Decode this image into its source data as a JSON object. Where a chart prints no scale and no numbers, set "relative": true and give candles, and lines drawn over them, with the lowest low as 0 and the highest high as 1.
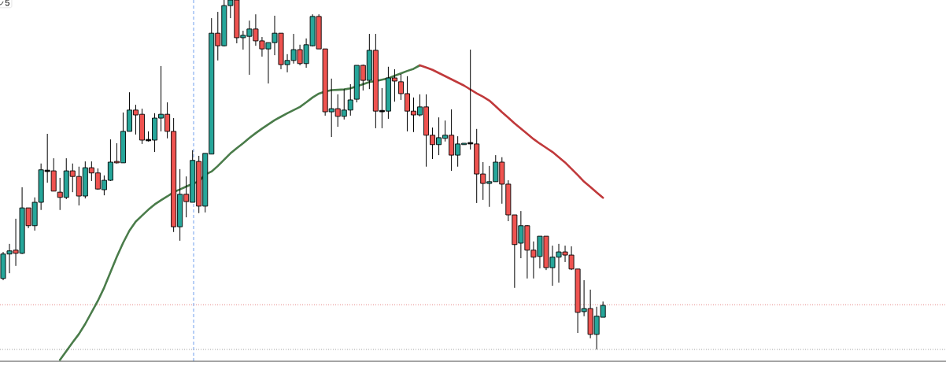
{
  "chart_data": {
    "type": "candlestick",
    "relative": true,
    "categories": [
      null,
      null,
      null,
      null,
      null,
      null,
      null,
      null,
      null,
      null,
      null,
      null,
      null,
      null,
      null,
      null,
      null,
      null,
      null,
      null,
      null,
      null,
      null,
      null,
      null,
      null,
      null,
      null,
      null,
      null,
      null,
      null,
      null,
      null,
      null,
      null,
      null,
      null,
      null,
      null,
      null,
      null,
      null,
      null,
      null,
      null,
      null,
      null,
      null,
      null,
      null,
      null,
      null,
      null,
      null,
      null,
      null,
      null,
      null,
      null,
      null,
      null,
      null,
      null,
      null,
      null,
      null,
      null,
      null,
      null,
      null,
      null,
      null,
      null,
      null,
      null,
      null,
      null,
      null,
      null,
      null,
      null,
      null,
      null,
      null,
      null,
      null,
      null,
      null,
      null,
      null,
      null,
      null,
      null,
      null,
      null
    ],
    "ohlc": [
      [
        0.203,
        0.279,
        0.198,
        0.273
      ],
      [
        0.273,
        0.302,
        0.218,
        0.282
      ],
      [
        0.284,
        0.374,
        0.239,
        0.275
      ],
      [
        0.275,
        0.464,
        0.273,
        0.405
      ],
      [
        0.405,
        0.405,
        0.347,
        0.354
      ],
      [
        0.354,
        0.435,
        0.34,
        0.421
      ],
      [
        0.421,
        0.532,
        0.399,
        0.514
      ],
      [
        0.511,
        0.617,
        0.477,
        0.511
      ],
      [
        0.511,
        0.547,
        0.453,
        0.453
      ],
      [
        0.45,
        0.491,
        0.399,
        0.435
      ],
      [
        0.435,
        0.547,
        0.43,
        0.511
      ],
      [
        0.511,
        0.532,
        0.45,
        0.495
      ],
      [
        0.495,
        0.523,
        0.412,
        0.439
      ],
      [
        0.439,
        0.538,
        0.432,
        0.52
      ],
      [
        0.52,
        0.538,
        0.482,
        0.505
      ],
      [
        0.505,
        0.518,
        0.457,
        0.459
      ],
      [
        0.457,
        0.498,
        0.441,
        0.484
      ],
      [
        0.484,
        0.601,
        0.482,
        0.536
      ],
      [
        0.538,
        0.59,
        0.532,
        0.534
      ],
      [
        0.534,
        0.678,
        0.534,
        0.624
      ],
      [
        0.624,
        0.736,
        0.624,
        0.685
      ],
      [
        0.685,
        0.7,
        0.615,
        0.671
      ],
      [
        0.673,
        0.689,
        0.588,
        0.599
      ],
      [
        0.599,
        0.624,
        0.595,
        0.599
      ],
      [
        0.599,
        0.676,
        0.565,
        0.662
      ],
      [
        0.662,
        0.811,
        0.624,
        0.673
      ],
      [
        0.673,
        0.707,
        0.604,
        0.624
      ],
      [
        0.624,
        0.662,
        0.336,
        0.351
      ],
      [
        0.351,
        0.516,
        0.311,
        0.444
      ],
      [
        0.444,
        0.495,
        0.378,
        0.423
      ],
      [
        0.421,
        0.57,
        0.421,
        0.541
      ],
      [
        0.538,
        0.554,
        0.39,
        0.41
      ],
      [
        0.41,
        0.561,
        0.392,
        0.561
      ],
      [
        0.559,
        0.948,
        0.559,
        0.905
      ],
      [
        0.905,
        0.966,
        0.827,
        0.869
      ],
      [
        0.869,
        1,
        0.867,
        0.984
      ],
      [
        0.984,
        1,
        0.948,
        1
      ],
      [
        1,
        1,
        0.876,
        0.892
      ],
      [
        0.892,
        0.912,
        0.858,
        0.899
      ],
      [
        0.896,
        0.941,
        0.786,
        0.917
      ],
      [
        0.917,
        0.959,
        0.869,
        0.883
      ],
      [
        0.883,
        0.894,
        0.838,
        0.86
      ],
      [
        0.86,
        0.878,
        0.761,
        0.878
      ],
      [
        0.878,
        0.955,
        0.842,
        0.905
      ],
      [
        0.905,
        0.905,
        0.802,
        0.815
      ],
      [
        0.815,
        0.845,
        0.793,
        0.827
      ],
      [
        0.827,
        0.903,
        0.818,
        0.858
      ],
      [
        0.858,
        0.872,
        0.813,
        0.818
      ],
      [
        0.818,
        0.89,
        0.806,
        0.872
      ],
      [
        0.869,
        0.959,
        0.867,
        0.953
      ],
      [
        0.953,
        0.959,
        0.86,
        0.86
      ],
      [
        0.86,
        0.86,
        0.669,
        0.68
      ],
      [
        0.68,
        0.775,
        0.608,
        0.689
      ],
      [
        0.689,
        0.73,
        0.637,
        0.667
      ],
      [
        0.667,
        0.745,
        0.658,
        0.685
      ],
      [
        0.685,
        0.759,
        0.669,
        0.714
      ],
      [
        0.716,
        0.813,
        0.707,
        0.813
      ],
      [
        0.813,
        0.815,
        0.741,
        0.77
      ],
      [
        0.77,
        0.903,
        0.745,
        0.856
      ],
      [
        0.856,
        0.903,
        0.633,
        0.682
      ],
      [
        0.682,
        0.748,
        0.633,
        0.682
      ],
      [
        0.682,
        0.809,
        0.66,
        0.777
      ],
      [
        0.777,
        0.802,
        0.709,
        0.768
      ],
      [
        0.766,
        0.788,
        0.714,
        0.732
      ],
      [
        0.732,
        0.782,
        0.624,
        0.682
      ],
      [
        0.682,
        0.721,
        0.622,
        0.671
      ],
      [
        0.671,
        0.73,
        0.667,
        0.694
      ],
      [
        0.694,
        0.73,
        0.523,
        0.613
      ],
      [
        0.613,
        0.635,
        0.545,
        0.586
      ],
      [
        0.586,
        0.664,
        0.556,
        0.606
      ],
      [
        0.604,
        0.655,
        0.595,
        0.613
      ],
      [
        0.613,
        0.687,
        0.511,
        0.556
      ],
      [
        0.556,
        0.61,
        0.523,
        0.588
      ],
      [
        0.586,
        0.59,
        0.586,
        0.59
      ],
      [
        0.59,
        0.858,
        0.572,
        0.59
      ],
      [
        0.588,
        0.631,
        0.419,
        0.502
      ],
      [
        0.502,
        0.536,
        0.428,
        0.475
      ],
      [
        0.475,
        0.525,
        0.408,
        0.48
      ],
      [
        0.48,
        0.556,
        0.48,
        0.536
      ],
      [
        0.536,
        0.55,
        0.417,
        0.473
      ],
      [
        0.473,
        0.484,
        0.367,
        0.385
      ],
      [
        0.385,
        0.385,
        0.176,
        0.3
      ],
      [
        0.304,
        0.396,
        0.261,
        0.354
      ],
      [
        0.354,
        0.356,
        0.203,
        0.284
      ],
      [
        0.284,
        0.309,
        0.203,
        0.264
      ],
      [
        0.266,
        0.324,
        0.232,
        0.324
      ],
      [
        0.324,
        0.324,
        0.227,
        0.234
      ],
      [
        0.234,
        0.297,
        0.182,
        0.264
      ],
      [
        0.264,
        0.302,
        0.191,
        0.279
      ],
      [
        0.279,
        0.297,
        0.25,
        0.27
      ],
      [
        0.27,
        0.295,
        0.227,
        0.23
      ],
      [
        0.23,
        0.23,
        0.047,
        0.106
      ],
      [
        0.108,
        0.198,
        0.095,
        0.117
      ],
      [
        0.117,
        0.171,
        0.032,
        0.043
      ],
      [
        0.043,
        0.122,
        0,
        0.095
      ],
      [
        0.092,
        0.137,
        0.092,
        0.126
      ]
    ],
    "series": [
      {
        "type": "line",
        "color": "#4a7c4a",
        "values": [
          null,
          null,
          null,
          null,
          null,
          null,
          null,
          null,
          null,
          -0.03,
          -0.005,
          0.02,
          0.044,
          0.073,
          0.106,
          0.139,
          0.177,
          0.221,
          0.265,
          0.305,
          0.34,
          0.366,
          0.383,
          0.4,
          0.415,
          0.427,
          0.438,
          0.45,
          0.458,
          0.466,
          0.474,
          0.481,
          0.5,
          0.509,
          0.525,
          0.543,
          0.561,
          0.576,
          0.59,
          0.605,
          0.619,
          0.632,
          0.644,
          0.656,
          0.666,
          0.676,
          0.685,
          0.694,
          0.707,
          0.721,
          0.732,
          0.738,
          0.742,
          0.743,
          0.744,
          0.747,
          0.753,
          0.759,
          0.765,
          0.768,
          0.772,
          0.776,
          0.783,
          0.79,
          0.797,
          0.803,
          0.813,
          null,
          null,
          null,
          null,
          null,
          null,
          null,
          null,
          null,
          null,
          null,
          null,
          null,
          null,
          null,
          null,
          null,
          null,
          null,
          null,
          null,
          null,
          null,
          null,
          null,
          null,
          null,
          null,
          null
        ]
      },
      {
        "type": "line",
        "color": "#c0393b",
        "values": [
          null,
          null,
          null,
          null,
          null,
          null,
          null,
          null,
          null,
          null,
          null,
          null,
          null,
          null,
          null,
          null,
          null,
          null,
          null,
          null,
          null,
          null,
          null,
          null,
          null,
          null,
          null,
          null,
          null,
          null,
          null,
          null,
          null,
          null,
          null,
          null,
          null,
          null,
          null,
          null,
          null,
          null,
          null,
          null,
          null,
          null,
          null,
          null,
          null,
          null,
          null,
          null,
          null,
          null,
          null,
          null,
          null,
          null,
          null,
          null,
          null,
          null,
          null,
          null,
          null,
          null,
          0.813,
          0.807,
          0.8,
          0.791,
          0.782,
          0.773,
          0.764,
          0.755,
          0.744,
          0.733,
          0.723,
          0.712,
          0.696,
          0.679,
          0.663,
          0.647,
          0.632,
          0.617,
          0.602,
          0.589,
          0.577,
          0.565,
          0.55,
          0.535,
          0.517,
          0.499,
          0.48,
          0.465,
          0.449,
          0.434
        ]
      }
    ],
    "ref_lines": [
      {
        "axis": "y",
        "value": 0.128,
        "color": "#e06666",
        "line_style": "dotted"
      },
      {
        "axis": "y",
        "value": 0,
        "color": "#888888",
        "line_style": "dotted"
      }
    ],
    "annotations": [
      "5"
    ]
  }
}
